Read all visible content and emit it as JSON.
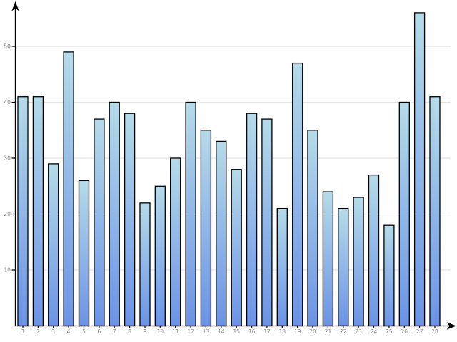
{
  "chart_data": {
    "type": "bar",
    "title": "",
    "xlabel": "",
    "ylabel": "",
    "categories": [
      "1",
      "2",
      "3",
      "4",
      "5",
      "6",
      "7",
      "8",
      "9",
      "10",
      "11",
      "12",
      "13",
      "14",
      "15",
      "16",
      "17",
      "18",
      "19",
      "20",
      "21",
      "22",
      "23",
      "24",
      "25",
      "26",
      "27",
      "28"
    ],
    "values": [
      41,
      41,
      29,
      49,
      26,
      37,
      40,
      38,
      22,
      25,
      30,
      40,
      35,
      33,
      28,
      38,
      37,
      21,
      47,
      35,
      24,
      21,
      23,
      27,
      18,
      40,
      56,
      41
    ],
    "yticks": [
      10,
      20,
      30,
      40,
      50
    ],
    "ylim": [
      0,
      58
    ],
    "grid": true,
    "legend": false,
    "colors": {
      "background": "#ffffff",
      "bar_gradient_top": "#b5dbe9",
      "bar_gradient_bottom": "#6b93e6",
      "bar_border": "#000000",
      "axis": "#000000",
      "gridline": "#e4e4e4",
      "tick_label": "#8c8c8c"
    }
  }
}
